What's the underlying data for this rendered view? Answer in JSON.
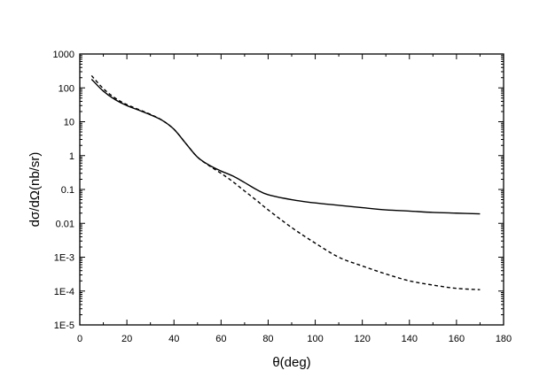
{
  "chart_data": {
    "type": "line",
    "title": "",
    "xlabel": "θ(deg)",
    "ylabel": "dσ/dΩ(nb/sr)",
    "xlim": [
      0,
      180
    ],
    "ylim": [
      1e-05,
      1000
    ],
    "y_scale": "log",
    "grid": false,
    "x_ticks": [
      0,
      20,
      40,
      60,
      80,
      100,
      120,
      140,
      160,
      180
    ],
    "x_tick_labels": [
      "0",
      "20",
      "40",
      "60",
      "80",
      "100",
      "120",
      "140",
      "160",
      "180"
    ],
    "y_ticks": [
      1000,
      100,
      10,
      1,
      0.1,
      0.01,
      0.001,
      0.0001,
      1e-05
    ],
    "y_tick_labels": [
      "1000",
      "100",
      "10",
      "1",
      "0.1",
      "0.01",
      "1E-3",
      "1E-4",
      "1E-5"
    ],
    "series": [
      {
        "style": "solid",
        "color": "#000000",
        "x": [
          5,
          10,
          15,
          20,
          25,
          30,
          35,
          40,
          45,
          50,
          55,
          60,
          65,
          70,
          75,
          80,
          90,
          100,
          110,
          120,
          130,
          140,
          150,
          160,
          170
        ],
        "y": [
          180,
          80,
          45,
          30,
          22,
          16,
          11,
          6,
          2.3,
          0.9,
          0.52,
          0.35,
          0.25,
          0.16,
          0.1,
          0.07,
          0.05,
          0.04,
          0.034,
          0.029,
          0.025,
          0.023,
          0.021,
          0.02,
          0.019
        ]
      },
      {
        "style": "dashed",
        "color": "#000000",
        "x": [
          5,
          10,
          15,
          20,
          25,
          30,
          35,
          40,
          45,
          50,
          55,
          60,
          65,
          70,
          75,
          80,
          90,
          100,
          110,
          120,
          130,
          140,
          150,
          160,
          170
        ],
        "y": [
          230,
          95,
          50,
          32,
          23,
          16.5,
          11,
          6,
          2.3,
          0.9,
          0.5,
          0.3,
          0.17,
          0.09,
          0.048,
          0.025,
          0.0075,
          0.0026,
          0.001,
          0.00055,
          0.00032,
          0.0002,
          0.00015,
          0.00012,
          0.00011
        ]
      }
    ]
  }
}
